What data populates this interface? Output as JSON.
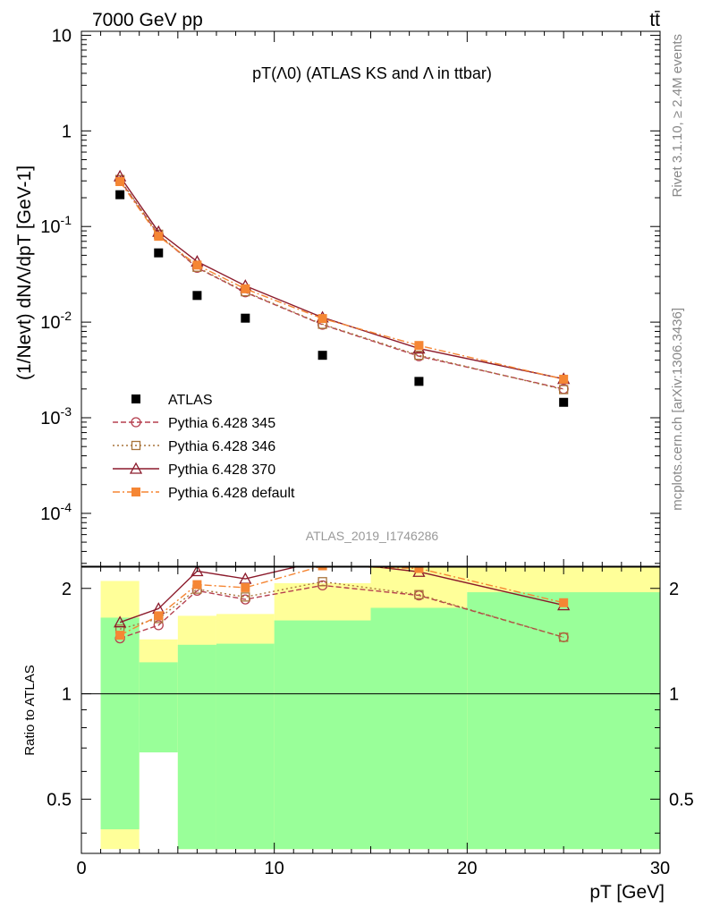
{
  "header": {
    "left": "7000 GeV pp",
    "right": "tt̄"
  },
  "side_labels": {
    "rivet": "Rivet 3.1.10, ≥ 2.4M events",
    "mcplots": "mcplots.cern.ch [arXiv:1306.3436]"
  },
  "chart_data": [
    {
      "type": "line",
      "title": "pT(Λ0) (ATLAS KS and Λ in ttbar)",
      "ylabel": "(1/Nevt) dNΛ/dpT [GeV-1]",
      "xlim": [
        0,
        30
      ],
      "ylim": [
        2.8e-05,
        11
      ],
      "yscale": "log",
      "y_ticks": [
        {
          "value": 10,
          "label": "10"
        },
        {
          "value": 1,
          "label": "1"
        },
        {
          "value": 0.1,
          "label": "10-1"
        },
        {
          "value": 0.01,
          "label": "10-2"
        },
        {
          "value": 0.001,
          "label": "10-3"
        },
        {
          "value": 0.0001,
          "label": "10-4"
        }
      ],
      "legend_position": "bottom-left",
      "watermark": "ATLAS_2019_I1746286",
      "series": [
        {
          "name": "ATLAS",
          "color": "#000000",
          "marker": "filled-square",
          "x": [
            2,
            4,
            6,
            8.5,
            12.5,
            17.5,
            25
          ],
          "y": [
            0.215,
            0.053,
            0.019,
            0.011,
            0.0045,
            0.0024,
            0.00145
          ]
        },
        {
          "name": "Pythia 6.428 345",
          "color": "#b53f4f",
          "marker": "open-circle",
          "dash": "dashed",
          "x": [
            2,
            4,
            6,
            8.5,
            12.5,
            17.5,
            25
          ],
          "y": [
            0.305,
            0.082,
            0.037,
            0.0205,
            0.0094,
            0.0044,
            0.002
          ]
        },
        {
          "name": "Pythia 6.428 346",
          "color": "#a8743a",
          "marker": "open-square",
          "dash": "dotted",
          "x": [
            2,
            4,
            6,
            8.5,
            12.5,
            17.5,
            25
          ],
          "y": [
            0.31,
            0.083,
            0.0375,
            0.0208,
            0.0095,
            0.0045,
            0.00197
          ]
        },
        {
          "name": "Pythia 6.428 370",
          "color": "#8b1a2b",
          "marker": "open-triangle",
          "dash": "solid",
          "x": [
            2,
            4,
            6,
            8.5,
            12.5,
            17.5,
            25
          ],
          "y": [
            0.335,
            0.088,
            0.043,
            0.024,
            0.0112,
            0.0053,
            0.00255
          ]
        },
        {
          "name": "Pythia 6.428 default",
          "color": "#f58634",
          "marker": "filled-square",
          "dash": "dashdot",
          "x": [
            2,
            4,
            6,
            8.5,
            12.5,
            17.5,
            25
          ],
          "y": [
            0.295,
            0.079,
            0.0395,
            0.0223,
            0.0109,
            0.0057,
            0.00253
          ]
        }
      ]
    },
    {
      "type": "line",
      "xlabel": "pT [GeV]",
      "ylabel": "Ratio to ATLAS",
      "xlim": [
        0,
        30
      ],
      "ylim": [
        0.35,
        2.3
      ],
      "yscale": "log",
      "x_ticks": [
        0,
        10,
        20,
        30
      ],
      "y_ticks": [
        0.5,
        1,
        2
      ],
      "reference_line": 1,
      "bands": [
        {
          "x": [
            1,
            3
          ],
          "green": [
            0.41,
            1.65
          ],
          "yellow": [
            0.36,
            2.1
          ]
        },
        {
          "x": [
            3,
            5
          ],
          "green": [
            0.68,
            1.23
          ],
          "yellow": [
            0.86,
            1.43
          ]
        },
        {
          "x": [
            5,
            7
          ],
          "green": [
            0.36,
            1.38
          ],
          "yellow": [
            0.36,
            1.67
          ]
        },
        {
          "x": [
            7,
            10
          ],
          "green": [
            0.36,
            1.39
          ],
          "yellow": [
            0.36,
            1.69
          ]
        },
        {
          "x": [
            10,
            15
          ],
          "green": [
            0.36,
            1.62
          ],
          "yellow": [
            0.36,
            2.07
          ]
        },
        {
          "x": [
            15,
            20
          ],
          "green": [
            0.36,
            1.76
          ],
          "yellow": [
            0.36,
            2.3
          ]
        },
        {
          "x": [
            20,
            30
          ],
          "green": [
            0.36,
            1.95
          ],
          "yellow": [
            0.36,
            2.3
          ]
        }
      ],
      "series": [
        {
          "name": "Pythia 6.428 345",
          "color": "#b53f4f",
          "marker": "open-circle",
          "dash": "dashed",
          "x": [
            2,
            4,
            6,
            8.5,
            12.5,
            17.5,
            25
          ],
          "y": [
            1.44,
            1.57,
            1.97,
            1.86,
            2.04,
            1.91,
            1.45
          ]
        },
        {
          "name": "Pythia 6.428 346",
          "color": "#a8743a",
          "marker": "open-square",
          "dash": "dotted",
          "x": [
            2,
            4,
            6,
            8.5,
            12.5,
            17.5,
            25
          ],
          "y": [
            1.53,
            1.64,
            1.99,
            1.89,
            2.09,
            1.92,
            1.45
          ]
        },
        {
          "name": "Pythia 6.428 370",
          "color": "#8b1a2b",
          "marker": "open-triangle",
          "dash": "solid",
          "x": [
            2,
            4,
            6,
            8.5,
            12.5,
            17.5,
            25
          ],
          "y": [
            1.6,
            1.75,
            2.24,
            2.13,
            2.4,
            2.23,
            1.79
          ]
        },
        {
          "name": "Pythia 6.428 default",
          "color": "#f58634",
          "marker": "filled-square",
          "dash": "dashdot",
          "x": [
            2,
            4,
            6,
            8.5,
            12.5,
            17.5,
            25
          ],
          "y": [
            1.47,
            1.67,
            2.05,
            2.01,
            2.32,
            2.28,
            1.82
          ]
        }
      ]
    }
  ]
}
